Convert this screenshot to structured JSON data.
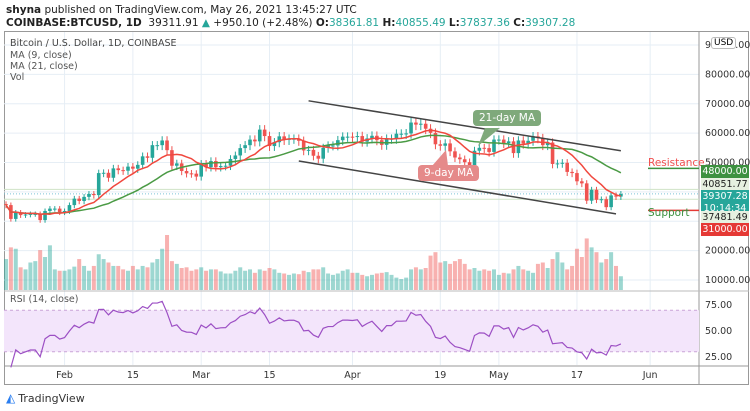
{
  "header": {
    "author": "shyna",
    "published": "published on TradingView.com, May 26, 2021 13:45:27 UTC",
    "symbol": "COINBASE:BTCUSD, 1D",
    "last": "39311.91",
    "change": "+950.10 (+2.48%)",
    "o_label": "O:",
    "o": "38361.81",
    "h_label": "H:",
    "h": "40855.49",
    "l_label": "L:",
    "l": "37837.36",
    "c_label": "C:",
    "c": "39307.28"
  },
  "legend": {
    "title": "Bitcoin / U.S. Dollar, 1D, COINBASE",
    "ma9": "MA (9, close)",
    "ma21": "MA (21, close)",
    "vol": "Vol",
    "rsi": "RSI (14, close)"
  },
  "annotations": {
    "ma21": "21-day MA",
    "ma9": "9-day MA",
    "resistance": "Resistance",
    "support": "Support"
  },
  "price_labels": {
    "currency": "USD",
    "resistance": "48000.00",
    "high": "40851.77",
    "last": "39307.28",
    "countdown": "10:14:34",
    "low": "37481.49",
    "support": "31000.00"
  },
  "colors": {
    "up": "#26a69a",
    "down": "#ef5350",
    "ma9": "#f0483e",
    "ma21": "#4a9a44",
    "rsi": "#9c4fc4",
    "resistance_box": "#3d9140",
    "support_box": "#e53935"
  },
  "logo": "TradingView",
  "chart_data": {
    "type": "candlestick",
    "start_date": "2021-01-20",
    "close": [
      35.5,
      30.8,
      33.0,
      32.1,
      32.3,
      32.5,
      32.5,
      30.4,
      33.5,
      34.3,
      34.3,
      33.1,
      33.5,
      35.5,
      37.7,
      36.9,
      38.3,
      39.3,
      38.9,
      46.4,
      46.5,
      44.8,
      48.0,
      47.4,
      47.2,
      48.6,
      47.9,
      49.2,
      52.1,
      51.6,
      55.9,
      55.9,
      57.5,
      54.2,
      48.9,
      49.7,
      47.1,
      46.3,
      46.2,
      45.2,
      49.6,
      48.4,
      50.5,
      48.4,
      48.8,
      48.9,
      51.2,
      52.4,
      54.9,
      55.9,
      57.8,
      57.2,
      61.2,
      59.0,
      55.6,
      56.9,
      58.9,
      57.7,
      58.1,
      58.1,
      57.4,
      54.1,
      54.3,
      52.3,
      51.3,
      55.0,
      55.8,
      55.8,
      57.6,
      58.8,
      58.8,
      58.7,
      59.0,
      57.1,
      58.2,
      59.1,
      57.6,
      56.0,
      58.1,
      58.1,
      59.8,
      59.8,
      59.9,
      63.6,
      62.9,
      63.2,
      61.5,
      60.1,
      56.2,
      55.7,
      56.5,
      53.8,
      51.7,
      51.1,
      50.1,
      49.1,
      54.0,
      55.0,
      54.9,
      53.6,
      57.8,
      57.8,
      56.6,
      57.2,
      53.2,
      57.5,
      56.4,
      57.4,
      58.9,
      58.3,
      55.9,
      56.8,
      49.5,
      49.7,
      49.9,
      46.8,
      46.4,
      43.6,
      42.9,
      37.0,
      40.7,
      37.3,
      37.5,
      34.8,
      38.8,
      38.4,
      39.3
    ],
    "close_unit": "thousand USD",
    "volume_relative": [
      45,
      62,
      60,
      33,
      30,
      40,
      42,
      58,
      48,
      65,
      30,
      28,
      28,
      30,
      34,
      45,
      35,
      28,
      35,
      52,
      45,
      40,
      35,
      35,
      30,
      28,
      35,
      30,
      35,
      33,
      40,
      45,
      60,
      80,
      42,
      38,
      32,
      33,
      28,
      30,
      33,
      28,
      30,
      30,
      27,
      24,
      24,
      28,
      33,
      28,
      30,
      25,
      30,
      28,
      32,
      30,
      25,
      24,
      22,
      24,
      23,
      28,
      26,
      30,
      30,
      33,
      24,
      22,
      24,
      28,
      30,
      25,
      25,
      22,
      20,
      22,
      24,
      25,
      26,
      22,
      18,
      16,
      18,
      30,
      33,
      30,
      32,
      50,
      55,
      40,
      42,
      38,
      42,
      45,
      38,
      30,
      32,
      28,
      30,
      28,
      30,
      22,
      25,
      24,
      30,
      35,
      30,
      28,
      25,
      38,
      40,
      32,
      45,
      55,
      40,
      30,
      35,
      60,
      48,
      75,
      62,
      55,
      40,
      45,
      55,
      35,
      20
    ],
    "y_ticks": [
      "90000.00",
      "80000.00",
      "70000.00",
      "60000.00",
      "50000.00",
      "20000.00",
      "10000.00"
    ],
    "y_tick_values": [
      90000,
      80000,
      70000,
      60000,
      50000,
      20000,
      10000
    ],
    "ylim": [
      10000,
      90000
    ],
    "x_ticks": [
      "Feb",
      "15",
      "Mar",
      "15",
      "Apr",
      "19",
      "May",
      "17",
      "Jun"
    ],
    "x_tick_dates": [
      "2021-02-01",
      "2021-02-15",
      "2021-03-01",
      "2021-03-15",
      "2021-04-01",
      "2021-04-19",
      "2021-05-01",
      "2021-05-17",
      "2021-06-01"
    ],
    "rsi_ticks": [
      "75.00",
      "50.00",
      "25.00"
    ],
    "rsi_band": [
      30,
      70
    ],
    "resistance": 48000,
    "support": 31000,
    "channel": {
      "upper": [
        [
          "2021-03-23",
          71000
        ],
        [
          "2021-05-26",
          54000
        ]
      ],
      "lower": [
        [
          "2021-03-21",
          50500
        ],
        [
          "2021-05-25",
          32500
        ]
      ]
    }
  }
}
